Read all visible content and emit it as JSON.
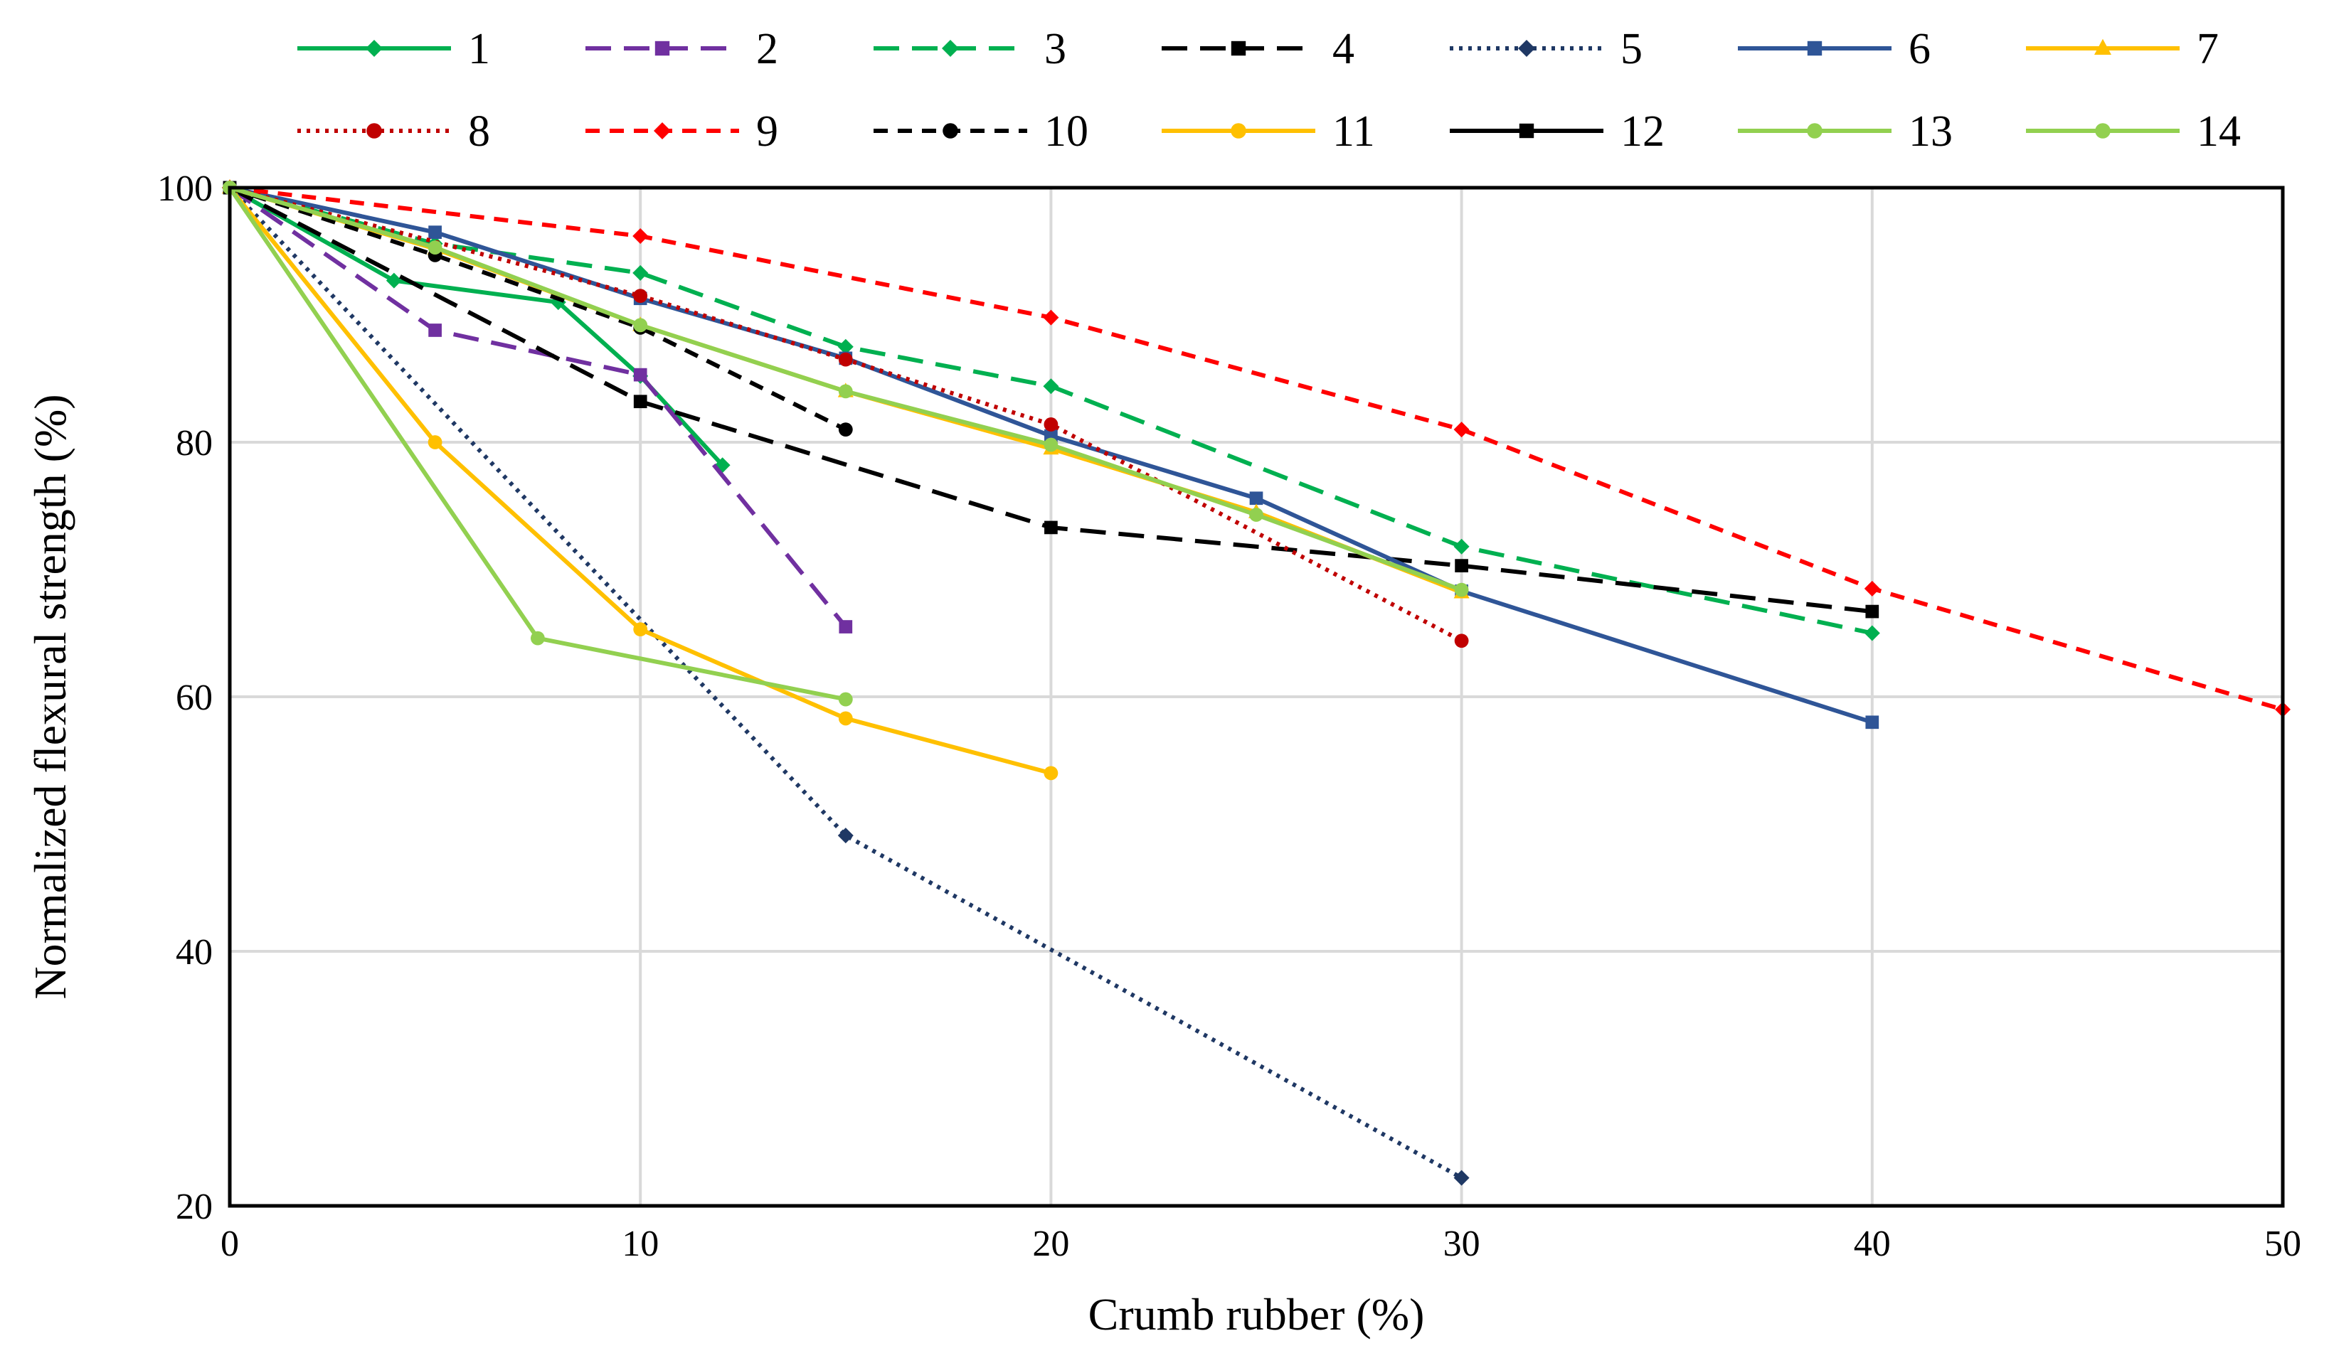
{
  "chart_data": {
    "type": "line",
    "title": "",
    "xlabel": "Crumb rubber (%)",
    "ylabel": "Normalized flexural strength (%)",
    "xlim": [
      0,
      50
    ],
    "ylim": [
      20,
      100
    ],
    "xticks": [
      0,
      10,
      20,
      30,
      40,
      50
    ],
    "yticks": [
      20,
      40,
      60,
      80,
      100
    ],
    "grid": true,
    "legend_position": "top",
    "series": [
      {
        "name": "1",
        "color": "#00b050",
        "dash": "solid",
        "marker": "diamond",
        "x": [
          0,
          4,
          8,
          10,
          12
        ],
        "y": [
          100,
          92.7,
          91,
          85.2,
          78.2
        ]
      },
      {
        "name": "2",
        "color": "#7030a0",
        "dash": "longdash",
        "marker": "square",
        "x": [
          0,
          5,
          10,
          15
        ],
        "y": [
          100,
          88.8,
          85.3,
          65.5
        ]
      },
      {
        "name": "3",
        "color": "#00b050",
        "dash": "longdash",
        "marker": "diamond",
        "x": [
          0,
          5,
          10,
          15,
          20,
          30,
          40
        ],
        "y": [
          100,
          95.6,
          93.3,
          87.5,
          84.4,
          71.8,
          65
        ]
      },
      {
        "name": "4",
        "color": "#000000",
        "dash": "longdash",
        "marker": "square",
        "x": [
          0,
          10,
          20,
          30,
          40
        ],
        "y": [
          100,
          83.2,
          73.3,
          70.3,
          66.7
        ]
      },
      {
        "name": "5",
        "color": "#1f3864",
        "dash": "dot",
        "marker": "diamond",
        "x": [
          0,
          15,
          30
        ],
        "y": [
          100,
          49.1,
          22.2
        ]
      },
      {
        "name": "6",
        "color": "#2f5597",
        "dash": "solid",
        "marker": "square",
        "x": [
          0,
          5,
          10,
          15,
          20,
          25,
          30,
          40
        ],
        "y": [
          100,
          96.5,
          91.3,
          86.6,
          80.5,
          75.6,
          68.3,
          58
        ]
      },
      {
        "name": "7",
        "color": "#ffc000",
        "dash": "solid",
        "marker": "triangle",
        "x": [
          0,
          5,
          10,
          15,
          20,
          25,
          30
        ],
        "y": [
          100,
          95.2,
          89.2,
          84,
          79.5,
          74.5,
          68.2
        ]
      },
      {
        "name": "8",
        "color": "#c00000",
        "dash": "dot",
        "marker": "circle",
        "x": [
          0,
          10,
          15,
          20,
          30
        ],
        "y": [
          100,
          91.5,
          86.5,
          81.4,
          64.4
        ]
      },
      {
        "name": "9",
        "color": "#ff0000",
        "dash": "dash",
        "marker": "diamond",
        "x": [
          0,
          10,
          20,
          30,
          40,
          50
        ],
        "y": [
          100,
          96.2,
          89.8,
          81,
          68.5,
          59
        ]
      },
      {
        "name": "10",
        "color": "#000000",
        "dash": "dash",
        "marker": "circle",
        "x": [
          0,
          5,
          10,
          15
        ],
        "y": [
          100,
          94.7,
          89,
          81
        ]
      },
      {
        "name": "11",
        "color": "#ffc000",
        "dash": "solid",
        "marker": "circle",
        "x": [
          0,
          5,
          10,
          15,
          20
        ],
        "y": [
          100,
          80,
          65.3,
          58.3,
          54
        ]
      },
      {
        "name": "12",
        "color": "#000000",
        "dash": "solid",
        "marker": "square",
        "x": [
          0
        ],
        "y": [
          100
        ]
      },
      {
        "name": "13",
        "color": "#92d050",
        "dash": "solid",
        "marker": "circle",
        "x": [
          0,
          5,
          10,
          15,
          20,
          25,
          30
        ],
        "y": [
          100,
          95.3,
          89.2,
          84,
          79.8,
          74.3,
          68.4
        ]
      },
      {
        "name": "14",
        "color": "#92d050",
        "dash": "solid",
        "marker": "circle",
        "x": [
          0,
          7.5,
          15
        ],
        "y": [
          100,
          64.6,
          59.8
        ]
      }
    ]
  }
}
